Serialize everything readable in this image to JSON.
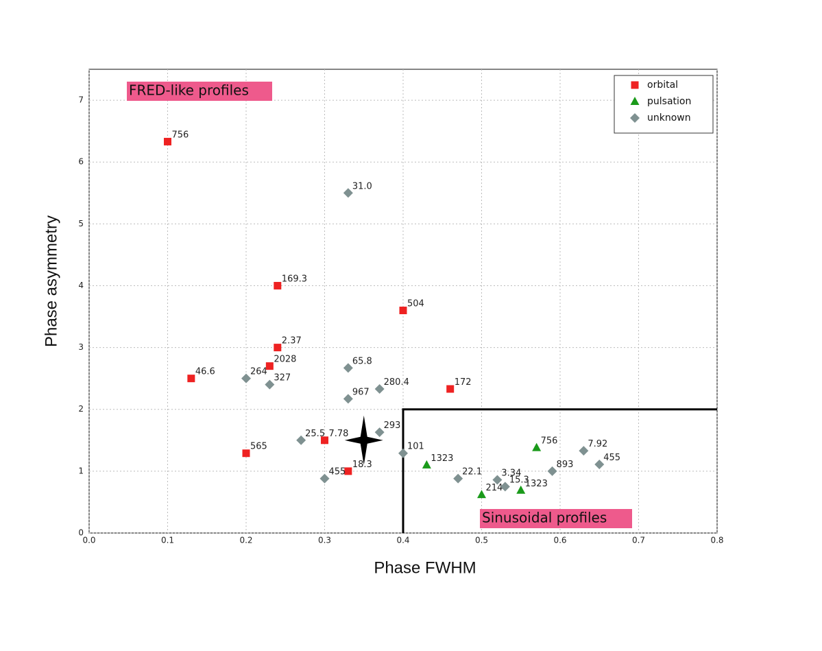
{
  "chart_data": {
    "type": "scatter",
    "xlabel": "Phase FWHM",
    "ylabel": "Phase asymmetry",
    "xlim": [
      0,
      0.8
    ],
    "ylim": [
      0,
      7.5
    ],
    "xticks": [
      {
        "value": 0,
        "label": "0.0"
      },
      0.1,
      0.2,
      0.3,
      0.4,
      0.5,
      0.6,
      0.7,
      0.8
    ],
    "yticks": [
      0,
      1,
      2,
      3,
      4,
      5,
      6,
      7
    ],
    "grid": true,
    "legend": "upper right",
    "annotations": [
      "FRED-like profiles",
      "Sinusoidal profiles"
    ],
    "star": {
      "x": 0.35,
      "y": 1.5
    },
    "boundary": {
      "x": 0.4,
      "y": 2
    },
    "series": [
      {
        "name": "orbital",
        "color": "#ee2222",
        "marker": "square",
        "x": [
          0.1,
          0.24,
          0.4,
          0.24,
          0.23,
          0.13,
          0.46,
          0.2,
          0.3,
          0.33
        ],
        "y": [
          6.33,
          4.0,
          3.6,
          3.0,
          2.7,
          2.5,
          2.33,
          1.29,
          1.5,
          1.0
        ],
        "labels": [
          "756",
          "169.3",
          "504",
          "2.37",
          "2028",
          "46.6",
          "172",
          "565",
          "7.78",
          "18.3"
        ]
      },
      {
        "name": "pulsation",
        "color": "#1a9a1a",
        "marker": "triangle",
        "x": [
          0.57,
          0.43,
          0.5,
          0.55
        ],
        "y": [
          1.38,
          1.1,
          0.62,
          0.69
        ],
        "labels": [
          "756",
          "1323",
          "214",
          "1323"
        ]
      },
      {
        "name": "unknown",
        "color": "#7f9191",
        "marker": "diamond",
        "x": [
          0.33,
          0.33,
          0.2,
          0.23,
          0.37,
          0.33,
          0.27,
          0.37,
          0.4,
          0.3,
          0.47,
          0.52,
          0.53,
          0.59,
          0.63,
          0.65
        ],
        "y": [
          5.5,
          2.67,
          2.5,
          2.4,
          2.33,
          2.17,
          1.5,
          1.63,
          1.29,
          0.88,
          0.88,
          0.86,
          0.75,
          1.0,
          1.33,
          1.11
        ],
        "labels": [
          "31.0",
          "65.8",
          "264",
          "327",
          "280.4",
          "967",
          "25.5",
          "293",
          "101",
          "455",
          "22.1",
          "3.34",
          "15.3",
          "893",
          "7.92",
          "455"
        ]
      }
    ]
  }
}
